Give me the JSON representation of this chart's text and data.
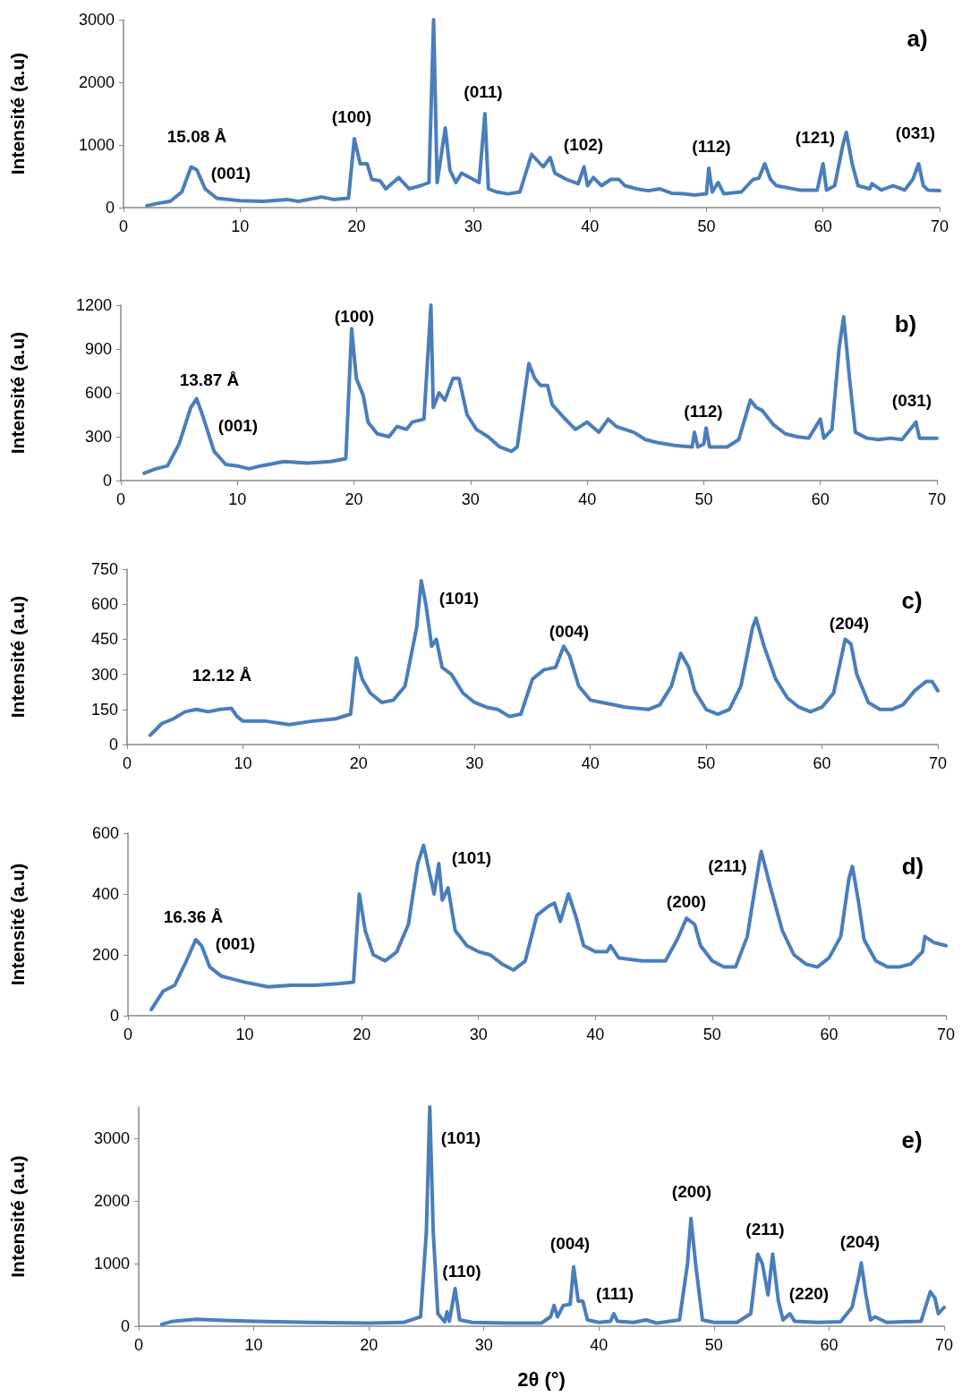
{
  "chart_data": [
    {
      "type": "line",
      "ylabel": "Intensité (a.u)",
      "xlim": [
        0,
        70
      ],
      "xticks": [
        0,
        10,
        20,
        30,
        40,
        50,
        60,
        70
      ],
      "ylim": [
        0,
        3000
      ],
      "yticks": [
        0,
        1000,
        2000,
        3000
      ],
      "marker": "none",
      "line_style": "solid",
      "series": [
        {
          "color": "#4a7ebb",
          "x": [
            2,
            3,
            4,
            5,
            5.8,
            6.3,
            7,
            8,
            10,
            12,
            14,
            15,
            17,
            18,
            19.3,
            19.8,
            20.3,
            20.9,
            21.3,
            22,
            22.5,
            23.6,
            24.5,
            25.5,
            26.2,
            26.6,
            26.9,
            27.6,
            28,
            28.5,
            29,
            29.5,
            30,
            30.5,
            31,
            31.3,
            32,
            33,
            34,
            35,
            35.5,
            36,
            36.6,
            37,
            38,
            39,
            39.5,
            39.8,
            40.3,
            41,
            41.8,
            42.5,
            43,
            44,
            45,
            46,
            47,
            48,
            49,
            50,
            50.2,
            50.5,
            51,
            51.5,
            53,
            54,
            54.5,
            55,
            55.5,
            56,
            58,
            59.5,
            60,
            60.3,
            61,
            61.7,
            62,
            62.5,
            63,
            64,
            64.2,
            65,
            66,
            67,
            67.7,
            68.2,
            68.6,
            69,
            70
          ],
          "values": [
            30,
            70,
            100,
            250,
            650,
            600,
            300,
            150,
            110,
            100,
            130,
            100,
            170,
            130,
            150,
            1100,
            700,
            700,
            450,
            430,
            300,
            480,
            300,
            350,
            400,
            3000,
            400,
            1270,
            600,
            400,
            550,
            500,
            450,
            400,
            1500,
            300,
            250,
            220,
            250,
            850,
            750,
            650,
            800,
            550,
            450,
            380,
            650,
            350,
            480,
            350,
            450,
            450,
            350,
            300,
            270,
            300,
            230,
            220,
            200,
            220,
            630,
            250,
            400,
            220,
            250,
            450,
            470,
            700,
            450,
            350,
            280,
            280,
            700,
            280,
            350,
            1000,
            1200,
            700,
            350,
            300,
            380,
            280,
            350,
            280,
            450,
            700,
            350,
            280,
            270
          ]
        }
      ],
      "annotations": [
        "15.08 Å",
        "(001)",
        "(100)",
        "(011)",
        "(102)",
        "(112)",
        "(121)",
        "(031)",
        "a)"
      ]
    },
    {
      "type": "line",
      "ylabel": "Intensité (a.u)",
      "xlim": [
        0,
        70
      ],
      "xticks": [
        0,
        10,
        20,
        30,
        40,
        50,
        60,
        70
      ],
      "ylim": [
        0,
        1200
      ],
      "yticks": [
        0,
        300,
        600,
        900,
        1200
      ],
      "marker": "none",
      "line_style": "solid",
      "series": [
        {
          "color": "#4a7ebb",
          "x": [
            2,
            3,
            4,
            5,
            6,
            6.5,
            7,
            8,
            9,
            10,
            11,
            12,
            14,
            16,
            18,
            19.3,
            19.8,
            20.2,
            20.8,
            21.2,
            22,
            23,
            23.7,
            24.5,
            25,
            26,
            26.6,
            26.8,
            27.3,
            27.8,
            28.5,
            29,
            29.7,
            30.5,
            31.5,
            32.5,
            33.5,
            34,
            35,
            35.5,
            36,
            36.6,
            37,
            38,
            39,
            40,
            41,
            41.8,
            42.5,
            44,
            45,
            46,
            47.5,
            49,
            49.2,
            49.5,
            50,
            50.2,
            50.5,
            52,
            53,
            54,
            54.5,
            55,
            56,
            57,
            58,
            59,
            60,
            60.3,
            61,
            61.6,
            62,
            62.5,
            63,
            64,
            65,
            66,
            67,
            68.2,
            68.5,
            70
          ],
          "values": [
            50,
            80,
            100,
            250,
            500,
            560,
            450,
            200,
            110,
            100,
            80,
            100,
            130,
            120,
            130,
            150,
            1040,
            700,
            580,
            400,
            320,
            300,
            370,
            350,
            400,
            420,
            1200,
            500,
            600,
            550,
            700,
            700,
            450,
            350,
            300,
            230,
            200,
            230,
            800,
            700,
            650,
            650,
            520,
            430,
            350,
            400,
            330,
            420,
            370,
            330,
            280,
            260,
            240,
            230,
            330,
            230,
            250,
            360,
            230,
            230,
            280,
            550,
            500,
            480,
            380,
            320,
            300,
            290,
            420,
            290,
            350,
            900,
            1120,
            700,
            330,
            290,
            280,
            290,
            280,
            400,
            290,
            290
          ]
        }
      ],
      "annotations": [
        "13.87 Å",
        "(001)",
        "(100)",
        "(112)",
        "(031)",
        "b)"
      ]
    },
    {
      "type": "line",
      "ylabel": "Intensité (a.u)",
      "xlim": [
        0,
        70
      ],
      "xticks": [
        0,
        10,
        20,
        30,
        40,
        50,
        60,
        70
      ],
      "ylim": [
        0,
        750
      ],
      "yticks": [
        0,
        150,
        300,
        450,
        600,
        750
      ],
      "marker": "none",
      "line_style": "solid",
      "series": [
        {
          "color": "#4a7ebb",
          "x": [
            2,
            3,
            4,
            5,
            6,
            7,
            8,
            9,
            9.5,
            10,
            12,
            14,
            16,
            18,
            19.3,
            19.8,
            20.3,
            21,
            22,
            23,
            24,
            25,
            25.4,
            25.8,
            26.3,
            26.7,
            27.2,
            28,
            29,
            30,
            31,
            32,
            33,
            34,
            35,
            36,
            37,
            37.7,
            38.2,
            39,
            40,
            41,
            42,
            43,
            45,
            46,
            47,
            47.8,
            48.5,
            49,
            50,
            51,
            52,
            53,
            54,
            54.3,
            55,
            56,
            57,
            58,
            59,
            60,
            61,
            62,
            62.5,
            63,
            64,
            65,
            66,
            67,
            68,
            69,
            69.5,
            70
          ],
          "values": [
            40,
            90,
            110,
            140,
            150,
            140,
            150,
            155,
            120,
            100,
            100,
            85,
            100,
            110,
            130,
            370,
            280,
            220,
            180,
            190,
            250,
            500,
            700,
            600,
            420,
            450,
            330,
            300,
            220,
            180,
            160,
            150,
            120,
            130,
            280,
            320,
            330,
            420,
            380,
            250,
            190,
            180,
            170,
            160,
            150,
            170,
            250,
            390,
            330,
            230,
            150,
            130,
            150,
            250,
            500,
            540,
            420,
            280,
            200,
            160,
            140,
            160,
            220,
            450,
            430,
            300,
            180,
            150,
            150,
            170,
            230,
            270,
            270,
            230
          ]
        }
      ],
      "annotations": [
        "12.12 Å",
        "(101)",
        "(004)",
        "(204)",
        "c)"
      ]
    },
    {
      "type": "line",
      "ylabel": "Intensité (a.u)",
      "xlim": [
        0,
        70
      ],
      "xticks": [
        0,
        10,
        20,
        30,
        40,
        50,
        60,
        70
      ],
      "ylim": [
        0,
        600
      ],
      "yticks": [
        0,
        200,
        400,
        600
      ],
      "marker": "none",
      "line_style": "solid",
      "series": [
        {
          "color": "#4a7ebb",
          "x": [
            2,
            3,
            4,
            5,
            5.8,
            6.3,
            7,
            8,
            10,
            12,
            14,
            16,
            18,
            19.3,
            19.8,
            20.3,
            21,
            22,
            23,
            24,
            24.8,
            25.3,
            25.8,
            26.2,
            26.6,
            26.9,
            27.4,
            28,
            29,
            30,
            31,
            32,
            33,
            34,
            35,
            36,
            36.5,
            37,
            37.7,
            38.3,
            39,
            40,
            41,
            41.3,
            42,
            44,
            46,
            47,
            47.8,
            48.5,
            49,
            50,
            51,
            52,
            53,
            54,
            54.2,
            55,
            56,
            57,
            58,
            59,
            60,
            61,
            61.7,
            62,
            62.5,
            63,
            64,
            65,
            66,
            67,
            68,
            68.2,
            69,
            70
          ],
          "values": [
            20,
            80,
            100,
            180,
            250,
            230,
            160,
            130,
            110,
            95,
            100,
            100,
            105,
            110,
            400,
            280,
            200,
            180,
            210,
            300,
            500,
            560,
            470,
            400,
            500,
            380,
            420,
            280,
            230,
            210,
            200,
            170,
            150,
            180,
            330,
            360,
            370,
            310,
            400,
            330,
            230,
            210,
            210,
            230,
            190,
            180,
            180,
            250,
            320,
            300,
            230,
            180,
            160,
            160,
            260,
            500,
            540,
            420,
            280,
            200,
            170,
            160,
            190,
            260,
            450,
            490,
            380,
            250,
            180,
            160,
            160,
            170,
            210,
            260,
            240,
            230
          ]
        }
      ],
      "annotations": [
        "16.36 Å",
        "(001)",
        "(101)",
        "(200)",
        "(211)",
        "d)"
      ]
    },
    {
      "type": "line",
      "xlabel": "2θ (°)",
      "ylabel": "Intensité (a.u)",
      "xlim": [
        0,
        70
      ],
      "xticks": [
        0,
        10,
        20,
        30,
        40,
        50,
        60,
        70
      ],
      "ylim": [
        0,
        3500
      ],
      "yticks": [
        0,
        1000,
        2000,
        3000
      ],
      "marker": "none",
      "line_style": "solid",
      "series": [
        {
          "color": "#4a7ebb",
          "x": [
            2,
            3,
            5,
            8,
            10,
            15,
            20,
            23,
            24.5,
            25,
            25.3,
            25.6,
            26,
            26.6,
            26.8,
            27,
            27.5,
            27.9,
            29,
            32,
            35,
            35.8,
            36.1,
            36.4,
            36.9,
            37.5,
            37.8,
            38.2,
            38.6,
            39,
            40,
            41,
            41.3,
            41.6,
            43,
            44.1,
            45,
            47,
            47.7,
            48,
            48.4,
            49,
            50,
            52,
            53.2,
            53.8,
            54.2,
            54.7,
            55.1,
            55.6,
            56,
            56.6,
            57,
            59,
            61,
            62,
            62.6,
            62.8,
            63.2,
            63.6,
            64,
            65,
            68,
            68.8,
            69.2,
            69.5,
            70
          ],
          "values": [
            30,
            80,
            110,
            90,
            80,
            60,
            50,
            60,
            150,
            1500,
            3500,
            1500,
            200,
            70,
            230,
            80,
            600,
            100,
            60,
            50,
            50,
            150,
            330,
            150,
            330,
            350,
            950,
            400,
            400,
            100,
            60,
            80,
            200,
            80,
            60,
            100,
            50,
            100,
            1000,
            1720,
            1000,
            100,
            60,
            60,
            200,
            1150,
            1000,
            500,
            1150,
            400,
            100,
            200,
            80,
            60,
            70,
            300,
            800,
            1010,
            500,
            100,
            150,
            60,
            80,
            550,
            450,
            200,
            300
          ]
        }
      ],
      "annotations": [
        "(101)",
        "(110)",
        "(004)",
        "(111)",
        "(200)",
        "(211)",
        "(220)",
        "(204)",
        "e)"
      ]
    }
  ]
}
